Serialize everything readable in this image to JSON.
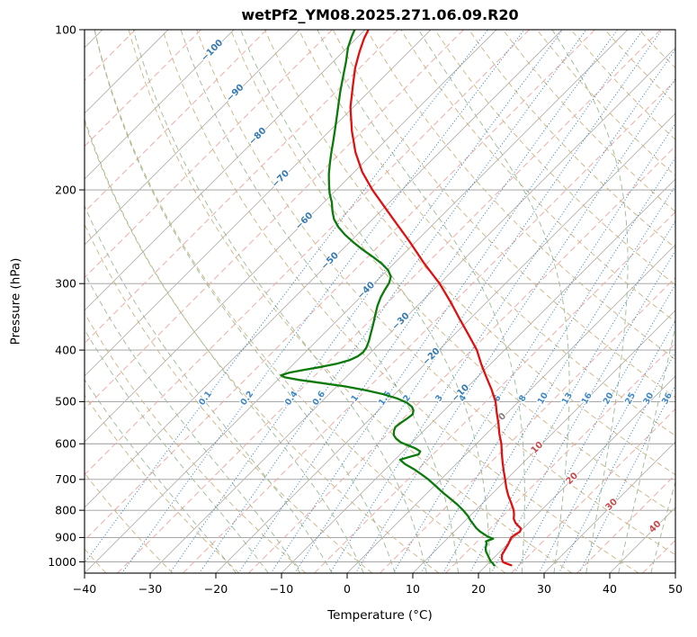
{
  "chart_data": {
    "type": "skewt_log_p",
    "title": "wetPf2_YM08.2025.271.06.09.R20",
    "xlabel": "Temperature (°C)",
    "ylabel": "Pressure (hPa)",
    "t_range": [
      -40,
      50
    ],
    "p_range": [
      100,
      1050
    ],
    "x_ticks": [
      -40,
      -30,
      -20,
      -10,
      0,
      10,
      20,
      30,
      40,
      50
    ],
    "p_ticks": [
      100,
      200,
      300,
      400,
      500,
      600,
      700,
      800,
      900,
      1000
    ],
    "skew_pixels_per_pixel": 1,
    "background": {
      "pressure_grid_color": "#9a9a9a",
      "isotherms_solid": {
        "start": -160,
        "end": 50,
        "step": 10,
        "color": "#b5b0aa"
      },
      "isotherms_dashed": {
        "start": -155,
        "end": 45,
        "step": 10,
        "color": "#f2a49e"
      },
      "dry_adiabats": {
        "start": -40,
        "end": 200,
        "step": 10,
        "color": "#ccb380"
      },
      "moist_adiabats": {
        "start": -20,
        "end": 45,
        "step": 5,
        "color": "#9aba94"
      },
      "mixing_ratio": {
        "values": [
          0.1,
          0.2,
          0.4,
          0.6,
          1,
          1.5,
          2,
          3,
          4,
          6,
          8,
          10,
          13,
          16,
          20,
          25,
          30,
          36
        ],
        "color": "#3f88c5",
        "label_pressure": 490
      }
    },
    "isotherm_labels": [
      {
        "t": -100,
        "p": 109,
        "color": "#3579b1"
      },
      {
        "t": -90,
        "p": 131,
        "color": "#3579b1"
      },
      {
        "t": -80,
        "p": 158,
        "color": "#3579b1"
      },
      {
        "t": -70,
        "p": 190,
        "color": "#3579b1"
      },
      {
        "t": -60,
        "p": 228,
        "color": "#3579b1"
      },
      {
        "t": -50,
        "p": 271,
        "color": "#3579b1"
      },
      {
        "t": -40,
        "p": 308,
        "color": "#3579b1"
      },
      {
        "t": -30,
        "p": 352,
        "color": "#3579b1"
      },
      {
        "t": -20,
        "p": 410,
        "color": "#3579b1"
      },
      {
        "t": -10,
        "p": 480,
        "color": "#3579b1"
      },
      {
        "t": 0,
        "p": 532,
        "color": "#7f7f7f"
      },
      {
        "t": 10,
        "p": 608,
        "color": "#c84a4a"
      },
      {
        "t": 20,
        "p": 695,
        "color": "#c84a4a"
      },
      {
        "t": 30,
        "p": 778,
        "color": "#c84a4a"
      },
      {
        "t": 40,
        "p": 856,
        "color": "#c84a4a"
      }
    ],
    "series": [
      {
        "name": "temperature",
        "color": "#e01010",
        "points": [
          [
            1015,
            23.8
          ],
          [
            1005,
            22.5
          ],
          [
            1000,
            22.0
          ],
          [
            985,
            21.3
          ],
          [
            970,
            20.8
          ],
          [
            950,
            20.5
          ],
          [
            930,
            20.2
          ],
          [
            910,
            19.8
          ],
          [
            900,
            19.6
          ],
          [
            890,
            19.7
          ],
          [
            878,
            20.0
          ],
          [
            866,
            19.7
          ],
          [
            855,
            18.8
          ],
          [
            845,
            18.0
          ],
          [
            830,
            17.1
          ],
          [
            815,
            16.5
          ],
          [
            800,
            15.8
          ],
          [
            775,
            14.3
          ],
          [
            750,
            12.7
          ],
          [
            725,
            11.2
          ],
          [
            700,
            9.8
          ],
          [
            675,
            8.3
          ],
          [
            650,
            6.8
          ],
          [
            625,
            5.3
          ],
          [
            600,
            3.8
          ],
          [
            575,
            2.0
          ],
          [
            550,
            0.3
          ],
          [
            525,
            -1.6
          ],
          [
            500,
            -3.5
          ],
          [
            475,
            -5.9
          ],
          [
            450,
            -8.6
          ],
          [
            425,
            -11.4
          ],
          [
            400,
            -14.2
          ],
          [
            375,
            -17.7
          ],
          [
            350,
            -21.5
          ],
          [
            325,
            -25.5
          ],
          [
            300,
            -30.0
          ],
          [
            275,
            -35.4
          ],
          [
            250,
            -41.0
          ],
          [
            225,
            -47.4
          ],
          [
            200,
            -54.5
          ],
          [
            185,
            -58.8
          ],
          [
            170,
            -62.8
          ],
          [
            155,
            -66.6
          ],
          [
            140,
            -70.4
          ],
          [
            128,
            -73.2
          ],
          [
            118,
            -75.7
          ],
          [
            110,
            -77.5
          ],
          [
            104,
            -78.8
          ],
          [
            100,
            -79.5
          ]
        ]
      },
      {
        "name": "dewpoint",
        "color": "#0b7a0b",
        "points": [
          [
            1015,
            21.2
          ],
          [
            1005,
            20.6
          ],
          [
            1000,
            20.2
          ],
          [
            985,
            19.4
          ],
          [
            970,
            18.6
          ],
          [
            955,
            17.8
          ],
          [
            940,
            17.2
          ],
          [
            925,
            16.8
          ],
          [
            915,
            16.3
          ],
          [
            905,
            17.0
          ],
          [
            897,
            15.9
          ],
          [
            888,
            15.0
          ],
          [
            877,
            13.9
          ],
          [
            864,
            12.8
          ],
          [
            850,
            11.8
          ],
          [
            835,
            10.7
          ],
          [
            820,
            9.7
          ],
          [
            800,
            8.1
          ],
          [
            780,
            6.3
          ],
          [
            760,
            4.3
          ],
          [
            740,
            2.2
          ],
          [
            720,
            0.2
          ],
          [
            700,
            -1.9
          ],
          [
            685,
            -3.7
          ],
          [
            670,
            -5.6
          ],
          [
            655,
            -7.8
          ],
          [
            643,
            -9.2
          ],
          [
            635,
            -8.2
          ],
          [
            628,
            -7.2
          ],
          [
            620,
            -7.4
          ],
          [
            612,
            -8.6
          ],
          [
            604,
            -10.2
          ],
          [
            596,
            -11.8
          ],
          [
            587,
            -13.0
          ],
          [
            578,
            -13.9
          ],
          [
            568,
            -14.5
          ],
          [
            558,
            -14.9
          ],
          [
            548,
            -14.7
          ],
          [
            538,
            -14.4
          ],
          [
            528,
            -14.2
          ],
          [
            519,
            -14.7
          ],
          [
            511,
            -15.5
          ],
          [
            502,
            -16.9
          ],
          [
            493,
            -19.0
          ],
          [
            484,
            -21.8
          ],
          [
            476,
            -25.0
          ],
          [
            468,
            -28.8
          ],
          [
            461,
            -33.0
          ],
          [
            455,
            -36.8
          ],
          [
            450,
            -39.3
          ],
          [
            446,
            -40.2
          ],
          [
            441,
            -39.3
          ],
          [
            436,
            -37.6
          ],
          [
            430,
            -35.3
          ],
          [
            424,
            -33.4
          ],
          [
            418,
            -32.1
          ],
          [
            411,
            -31.4
          ],
          [
            404,
            -31.2
          ],
          [
            396,
            -31.4
          ],
          [
            385,
            -32.0
          ],
          [
            372,
            -32.9
          ],
          [
            358,
            -33.9
          ],
          [
            344,
            -35.0
          ],
          [
            330,
            -36.1
          ],
          [
            318,
            -36.9
          ],
          [
            308,
            -37.4
          ],
          [
            299,
            -37.8
          ],
          [
            291,
            -38.5
          ],
          [
            283,
            -39.9
          ],
          [
            275,
            -41.9
          ],
          [
            267,
            -44.3
          ],
          [
            259,
            -46.9
          ],
          [
            251,
            -49.4
          ],
          [
            243,
            -51.8
          ],
          [
            235,
            -54.0
          ],
          [
            227,
            -55.9
          ],
          [
            219,
            -57.4
          ],
          [
            211,
            -58.8
          ],
          [
            203,
            -60.5
          ],
          [
            195,
            -62.0
          ],
          [
            187,
            -63.5
          ],
          [
            179,
            -64.9
          ],
          [
            171,
            -66.3
          ],
          [
            163,
            -67.7
          ],
          [
            155,
            -69.2
          ],
          [
            147,
            -70.8
          ],
          [
            139,
            -72.5
          ],
          [
            131,
            -74.3
          ],
          [
            123,
            -76.1
          ],
          [
            115,
            -78.0
          ],
          [
            108,
            -79.9
          ],
          [
            103,
            -81.0
          ],
          [
            100,
            -81.6
          ]
        ]
      }
    ]
  }
}
